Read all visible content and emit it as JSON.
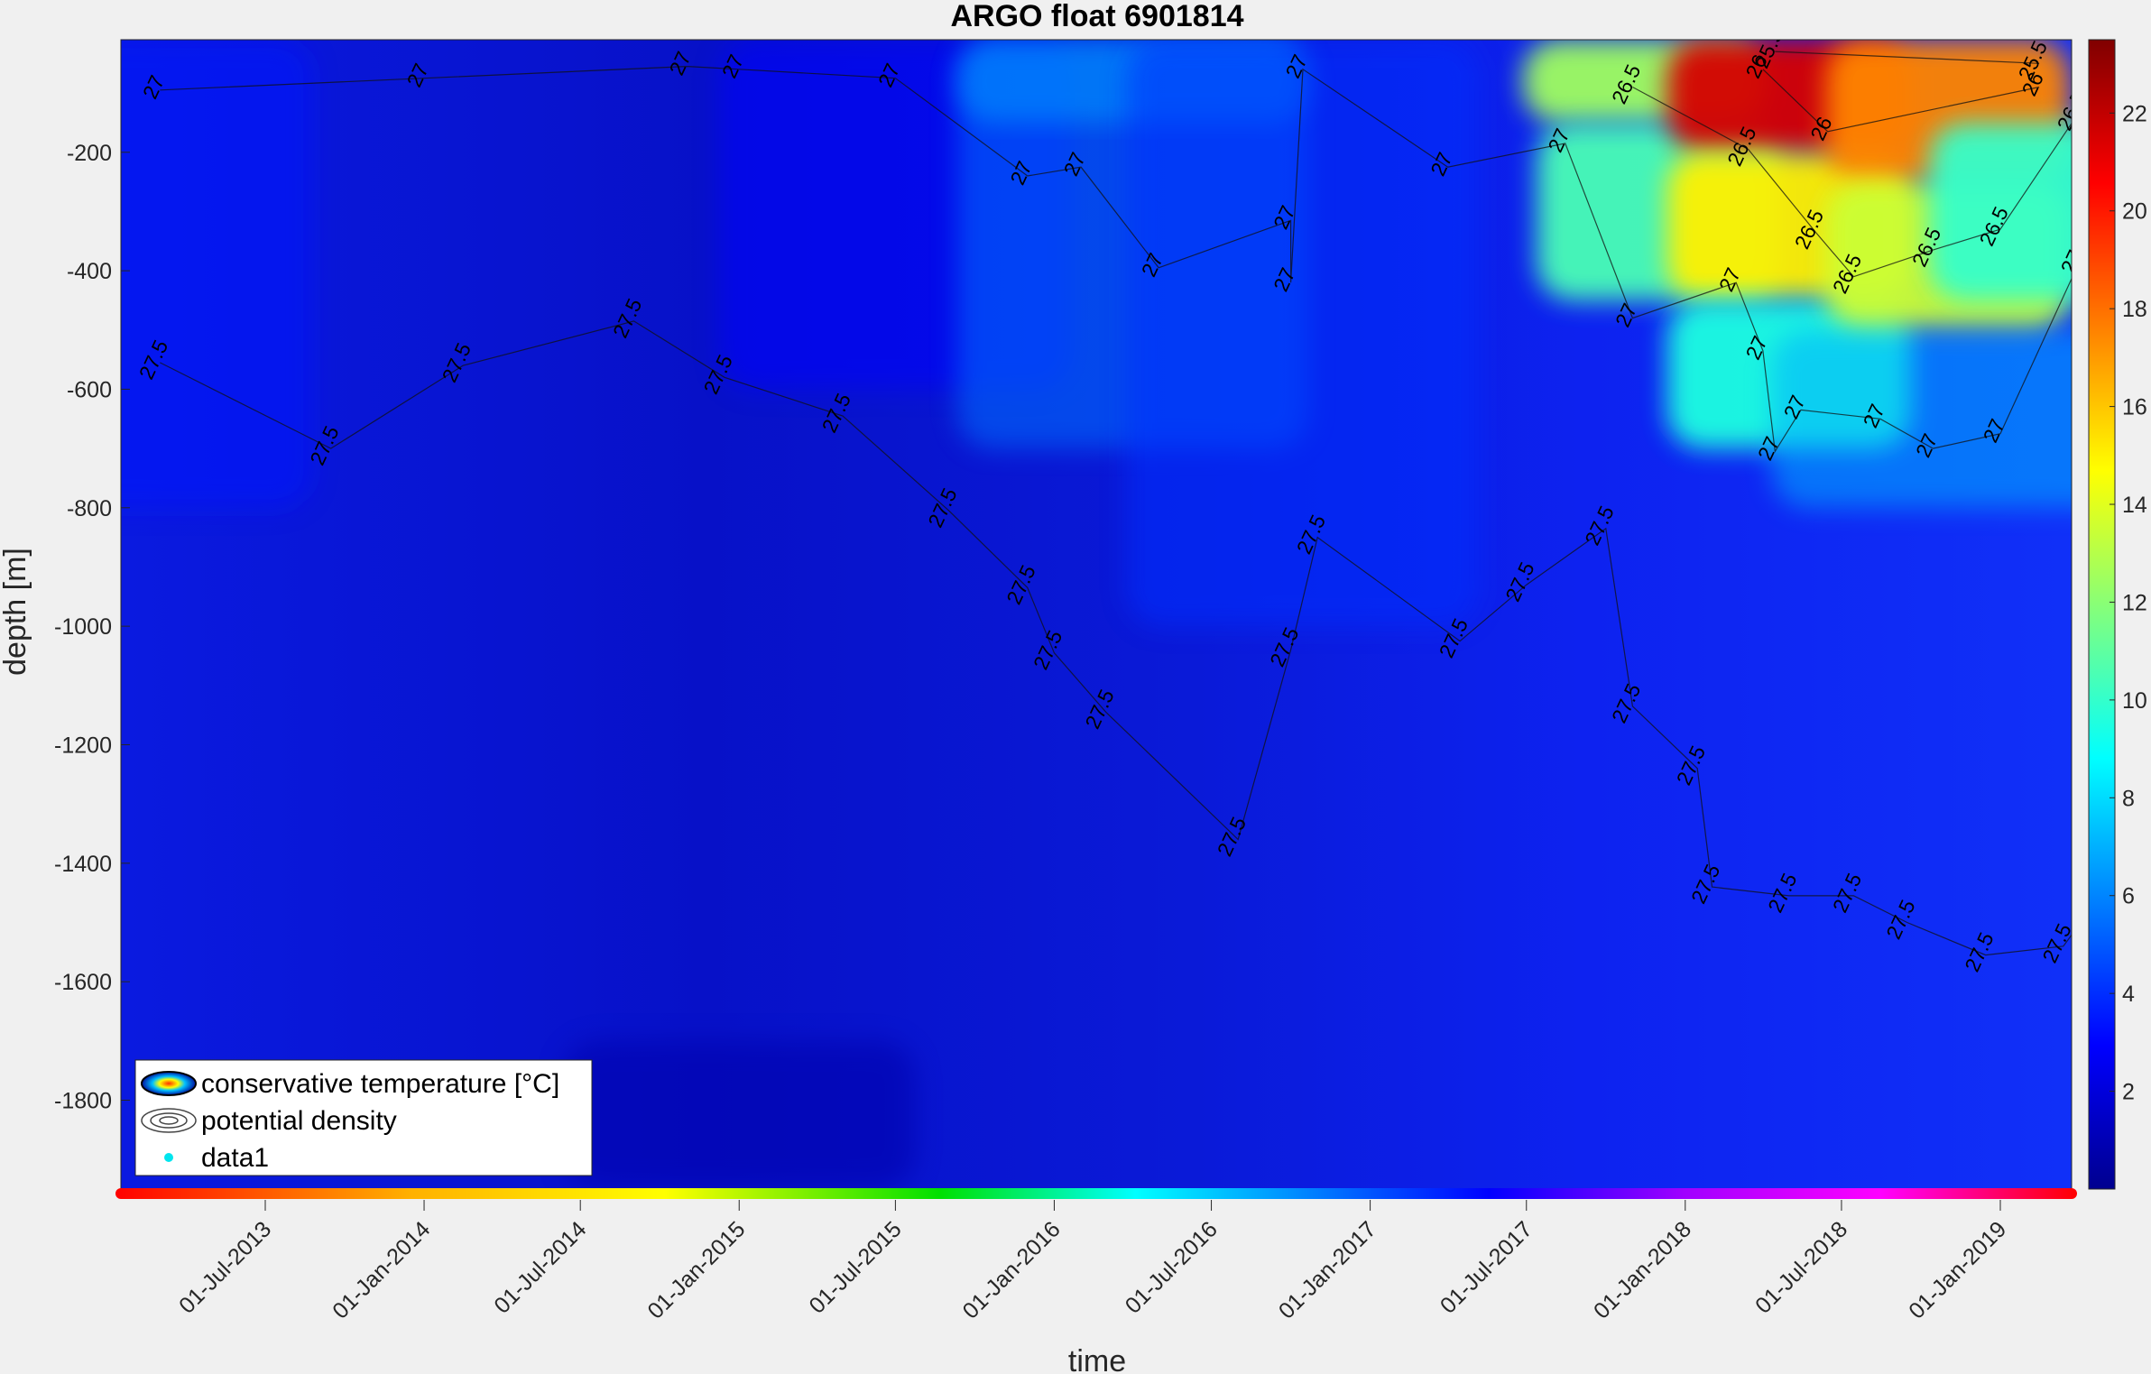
{
  "chart_data": {
    "type": "heatmap",
    "title": "ARGO float 6901814",
    "xlabel": "time",
    "ylabel": "depth [m]",
    "x_ticks": [
      "01-Jul-2013",
      "01-Jan-2014",
      "01-Jul-2014",
      "01-Jan-2015",
      "01-Jul-2015",
      "01-Jan-2016",
      "01-Jul-2016",
      "01-Jan-2017",
      "01-Jul-2017",
      "01-Jan-2018",
      "01-Jul-2018",
      "01-Jan-2019"
    ],
    "y_ticks": [
      -200,
      -400,
      -600,
      -800,
      -1000,
      -1200,
      -1400,
      -1600,
      -1800
    ],
    "ylim": [
      -1950,
      -10
    ],
    "colorbar": {
      "ticks": [
        2,
        4,
        6,
        8,
        10,
        12,
        14,
        16,
        18,
        20,
        22
      ],
      "range": [
        0,
        23.5
      ],
      "colormap": "jet"
    },
    "legend": {
      "location": "bottom-left",
      "entries": [
        "conservative temperature [°C]",
        "potential density",
        "data1"
      ]
    },
    "contour_levels": [
      "25.5",
      "26",
      "26.5",
      "27",
      "27.5"
    ],
    "contour_labels": [
      {
        "t": "01-Mar-2013",
        "d": -95,
        "v": "27"
      },
      {
        "t": "01-Jan-2014",
        "d": -75,
        "v": "27"
      },
      {
        "t": "01-Nov-2014",
        "d": -55,
        "v": "27"
      },
      {
        "t": "01-Jan-2015",
        "d": -60,
        "v": "27"
      },
      {
        "t": "01-Jul-2015",
        "d": -75,
        "v": "27"
      },
      {
        "t": "01-Dec-2015",
        "d": -240,
        "v": "27"
      },
      {
        "t": "01-Feb-2016",
        "d": -225,
        "v": "27"
      },
      {
        "t": "01-May-2016",
        "d": -395,
        "v": "27"
      },
      {
        "t": "01-Oct-2016",
        "d": -315,
        "v": "27"
      },
      {
        "t": "01-Oct-2016",
        "d": -420,
        "v": "27"
      },
      {
        "t": "15-Oct-2016",
        "d": -60,
        "v": "27"
      },
      {
        "t": "01-Apr-2017",
        "d": -225,
        "v": "27"
      },
      {
        "t": "15-Aug-2017",
        "d": -185,
        "v": "27"
      },
      {
        "t": "01-Nov-2017",
        "d": -480,
        "v": "27"
      },
      {
        "t": "01-Mar-2018",
        "d": -420,
        "v": "27"
      },
      {
        "t": "01-Apr-2018",
        "d": -535,
        "v": "27"
      },
      {
        "t": "15-Apr-2018",
        "d": -705,
        "v": "27"
      },
      {
        "t": "15-May-2018",
        "d": -635,
        "v": "27"
      },
      {
        "t": "15-Aug-2018",
        "d": -650,
        "v": "27"
      },
      {
        "t": "15-Oct-2018",
        "d": -700,
        "v": "27"
      },
      {
        "t": "01-Jan-2019",
        "d": -675,
        "v": "27"
      },
      {
        "t": "01-Apr-2019",
        "d": -390,
        "v": "27"
      },
      {
        "t": "01-Nov-2017",
        "d": -90,
        "v": "26.5"
      },
      {
        "t": "15-Mar-2018",
        "d": -195,
        "v": "26.5"
      },
      {
        "t": "01-Jun-2018",
        "d": -335,
        "v": "26.5"
      },
      {
        "t": "15-Jul-2018",
        "d": -410,
        "v": "26.5"
      },
      {
        "t": "15-Oct-2018",
        "d": -365,
        "v": "26.5"
      },
      {
        "t": "01-Jan-2019",
        "d": -330,
        "v": "26.5"
      },
      {
        "t": "01-Apr-2019",
        "d": -135,
        "v": "26.5"
      },
      {
        "t": "01-Apr-2018",
        "d": -60,
        "v": "26"
      },
      {
        "t": "15-Jun-2018",
        "d": -165,
        "v": "26"
      },
      {
        "t": "15-Feb-2019",
        "d": -90,
        "v": "26"
      },
      {
        "t": "15-Apr-2018",
        "d": -30,
        "v": "25.5"
      },
      {
        "t": "15-Feb-2019",
        "d": -50,
        "v": "25.5"
      },
      {
        "t": "01-Mar-2013",
        "d": -555,
        "v": "27.5"
      },
      {
        "t": "15-Sep-2013",
        "d": -700,
        "v": "27.5"
      },
      {
        "t": "15-Feb-2014",
        "d": -560,
        "v": "27.5"
      },
      {
        "t": "01-Sep-2014",
        "d": -485,
        "v": "27.5"
      },
      {
        "t": "15-Dec-2014",
        "d": -580,
        "v": "27.5"
      },
      {
        "t": "01-May-2015",
        "d": -645,
        "v": "27.5"
      },
      {
        "t": "01-Sep-2015",
        "d": -805,
        "v": "27.5"
      },
      {
        "t": "01-Dec-2015",
        "d": -935,
        "v": "27.5"
      },
      {
        "t": "01-Jan-2016",
        "d": -1045,
        "v": "27.5"
      },
      {
        "t": "01-Mar-2016",
        "d": -1145,
        "v": "27.5"
      },
      {
        "t": "01-Aug-2016",
        "d": -1360,
        "v": "27.5"
      },
      {
        "t": "01-Oct-2016",
        "d": -1040,
        "v": "27.5"
      },
      {
        "t": "01-Nov-2016",
        "d": -850,
        "v": "27.5"
      },
      {
        "t": "15-Apr-2017",
        "d": -1025,
        "v": "27.5"
      },
      {
        "t": "01-Jul-2017",
        "d": -930,
        "v": "27.5"
      },
      {
        "t": "01-Oct-2017",
        "d": -835,
        "v": "27.5"
      },
      {
        "t": "01-Nov-2017",
        "d": -1135,
        "v": "27.5"
      },
      {
        "t": "15-Jan-2018",
        "d": -1240,
        "v": "27.5"
      },
      {
        "t": "01-Feb-2018",
        "d": -1440,
        "v": "27.5"
      },
      {
        "t": "01-May-2018",
        "d": -1455,
        "v": "27.5"
      },
      {
        "t": "15-Jul-2018",
        "d": -1455,
        "v": "27.5"
      },
      {
        "t": "15-Sep-2018",
        "d": -1500,
        "v": "27.5"
      },
      {
        "t": "15-Dec-2018",
        "d": -1555,
        "v": "27.5"
      },
      {
        "t": "15-Mar-2019",
        "d": -1540,
        "v": "27.5"
      },
      {
        "t": "15-May-2019",
        "d": -1420,
        "v": "27.5"
      }
    ],
    "temperature_field": [
      {
        "t": "01-Feb-2013",
        "d1": -10,
        "d2": -800,
        "v": 3.5
      },
      {
        "t": "01-Jul-2015",
        "d1": -10,
        "d2": -600,
        "v": 3.0
      },
      {
        "t": "01-Apr-2016",
        "d1": -10,
        "d2": -700,
        "v": 5.5
      },
      {
        "t": "01-Apr-2016",
        "d1": -10,
        "d2": -150,
        "v": 6.5
      },
      {
        "t": "15-Oct-2016",
        "d1": -10,
        "d2": -1000,
        "v": 4.0
      },
      {
        "t": "15-Nov-2017",
        "d1": -10,
        "d2": -150,
        "v": 12.5
      },
      {
        "t": "01-Dec-2017",
        "d1": -150,
        "d2": -450,
        "v": 10.5
      },
      {
        "t": "01-May-2018",
        "d1": -10,
        "d2": -200,
        "v": 21.5
      },
      {
        "t": "01-May-2018",
        "d1": -200,
        "d2": -450,
        "v": 15.0
      },
      {
        "t": "01-May-2018",
        "d1": -450,
        "d2": -700,
        "v": 9.5
      },
      {
        "t": "01-Nov-2018",
        "d1": -10,
        "d2": -250,
        "v": 17.5
      },
      {
        "t": "01-Nov-2018",
        "d1": -250,
        "d2": -500,
        "v": 13.5
      },
      {
        "t": "01-Nov-2018",
        "d1": -500,
        "d2": -800,
        "v": 7.0
      },
      {
        "t": "01-Mar-2019",
        "d1": -150,
        "d2": -450,
        "v": 10.0
      },
      {
        "t": "01-Jan-2015",
        "d1": -1700,
        "d2": -1950,
        "v": 1.0
      }
    ]
  }
}
